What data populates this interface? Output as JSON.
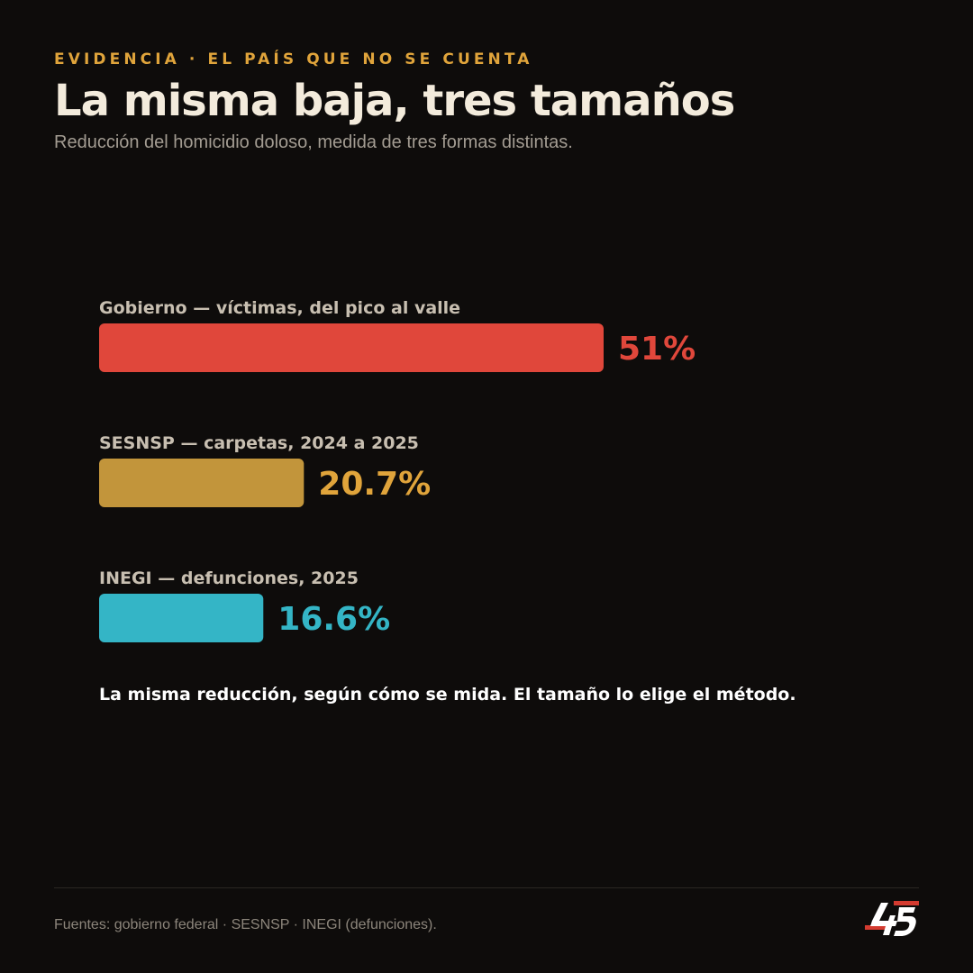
{
  "header": {
    "kicker": "EVIDENCIA · EL PAÍS QUE NO SE CUENTA",
    "title": "La misma baja, tres tamaños",
    "subtitle": "Reducción del homicidio doloso, medida de tres formas distintas."
  },
  "chart_data": {
    "type": "bar",
    "orientation": "horizontal",
    "title": "La misma baja, tres tamaños",
    "subtitle": "Reducción del homicidio doloso, medida de tres formas distintas.",
    "categories": [
      "Gobierno — víctimas, del pico al valle",
      "SESNSP — carpetas, 2024 a 2025",
      "INEGI — defunciones, 2025"
    ],
    "values": [
      51,
      20.7,
      16.6
    ],
    "value_labels": [
      "51%",
      "20.7%",
      "16.6%"
    ],
    "colors": [
      "#e0473b",
      "#c2953b",
      "#34b5c6"
    ],
    "label_colors": [
      "#e0473b",
      "#e0a43b",
      "#34b5c6"
    ],
    "xlim": [
      0,
      51
    ],
    "grid": false,
    "legend": "none"
  },
  "note": "La misma reducción, según cómo se mida. El tamaño lo elige el método.",
  "footer": {
    "sources": "Fuentes: gobierno federal · SESNSP · INEGI (defunciones).",
    "logo_icon": "45-digital-logo"
  }
}
